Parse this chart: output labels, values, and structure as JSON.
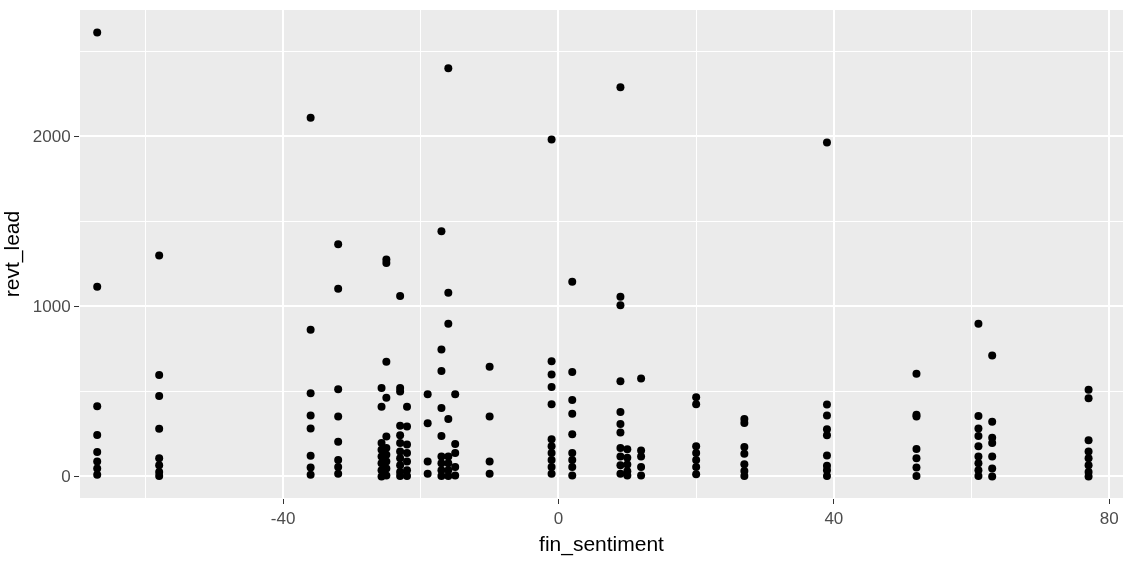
{
  "chart_data": {
    "type": "scatter",
    "xlabel": "fin_sentiment",
    "ylabel": "revt_lead",
    "marker": "circle",
    "grid": true,
    "xlim": [
      -69.5,
      82
    ],
    "ylim": [
      -127,
      2743
    ],
    "xticks": [
      {
        "value": -60,
        "label": null
      },
      -40,
      {
        "value": -20,
        "label": null
      },
      0,
      {
        "value": 20,
        "label": null
      },
      40,
      {
        "value": 60,
        "label": null
      },
      80
    ],
    "yticks": [
      0,
      {
        "value": 500,
        "label": null
      },
      1000,
      {
        "value": 1500,
        "label": null
      },
      2000,
      {
        "value": 2500,
        "label": null
      }
    ],
    "series": [
      {
        "color": "#000000",
        "x": [
          -67,
          -67,
          -67,
          -67,
          -67,
          -67,
          -67,
          -67,
          -58,
          -58,
          -58,
          -58,
          -58,
          -58,
          -58,
          -58,
          -36,
          -36,
          -36,
          -36,
          -36,
          -36,
          -36,
          -36,
          -32,
          -32,
          -32,
          -32,
          -32,
          -32,
          -32,
          -32,
          -25.7,
          -25.7,
          -25.7,
          -25.7,
          -25.7,
          -25.7,
          -25.7,
          -25.7,
          -25,
          -25,
          -25,
          -25,
          -25,
          -25,
          -25,
          -25,
          -25,
          -25,
          -23,
          -23,
          -23,
          -23,
          -23,
          -23,
          -23,
          -23,
          -23,
          -23,
          -23,
          -22,
          -22,
          -22,
          -22,
          -22,
          -22,
          -22,
          -19,
          -19,
          -19,
          -19,
          -17,
          -17,
          -17,
          -17,
          -17,
          -17,
          -17,
          -17,
          -17,
          -16,
          -16,
          -16,
          -16,
          -16,
          -16,
          -16,
          -16,
          -15,
          -15,
          -15,
          -15,
          -15,
          -10,
          -10,
          -10,
          -10,
          -1,
          -1,
          -1,
          -1,
          -1,
          -1,
          -1,
          -1,
          -1,
          -1,
          -1,
          2,
          2,
          2,
          2,
          2,
          2,
          2,
          2,
          2,
          9,
          9,
          9,
          9,
          9,
          9,
          9,
          9,
          9,
          9,
          9,
          10,
          10,
          10,
          10,
          10,
          12,
          12,
          12,
          12,
          12,
          20,
          20,
          20,
          20,
          20,
          20,
          20,
          27,
          27,
          27,
          27,
          27,
          27,
          27,
          39,
          39,
          39,
          39,
          39,
          39,
          39,
          39,
          39,
          52,
          52,
          52,
          52,
          52,
          52,
          52,
          61,
          61,
          61,
          61,
          61,
          61,
          61,
          61,
          61,
          63,
          63,
          63,
          63,
          63,
          63,
          63,
          77,
          77,
          77,
          77,
          77,
          77,
          77,
          77
        ],
        "values": [
          2610,
          1115,
          413,
          244,
          143,
          87,
          46,
          10,
          1299,
          596,
          473,
          280,
          107,
          66,
          26,
          3,
          2109,
          862,
          489,
          358,
          282,
          121,
          53,
          10,
          1366,
          1104,
          512,
          352,
          204,
          97,
          56,
          16,
          520,
          409,
          197,
          157,
          117,
          77,
          36,
          0,
          1275,
          1255,
          675,
          463,
          234,
          167,
          127,
          87,
          46,
          6,
          1061,
          520,
          500,
          298,
          242,
          197,
          147,
          107,
          66,
          26,
          3,
          409,
          294,
          187,
          137,
          87,
          36,
          3,
          483,
          312,
          87,
          16,
          1442,
          747,
          620,
          403,
          238,
          117,
          77,
          36,
          3,
          2400,
          1080,
          898,
          338,
          117,
          77,
          36,
          3,
          483,
          191,
          137,
          56,
          6,
          645,
          352,
          87,
          16,
          1982,
          677,
          600,
          526,
          425,
          218,
          177,
          137,
          97,
          56,
          16,
          1145,
          614,
          449,
          369,
          248,
          137,
          97,
          56,
          6,
          2289,
          1057,
          1006,
          560,
          379,
          308,
          258,
          167,
          117,
          66,
          16,
          160,
          110,
          70,
          30,
          5,
          576,
          153,
          117,
          56,
          6,
          465,
          425,
          177,
          137,
          97,
          56,
          12,
          338,
          314,
          173,
          133,
          72,
          32,
          2,
          1964,
          423,
          358,
          278,
          242,
          123,
          62,
          36,
          3,
          604,
          362,
          352,
          161,
          107,
          53,
          3,
          898,
          355,
          282,
          238,
          177,
          117,
          77,
          36,
          3,
          711,
          322,
          228,
          197,
          117,
          46,
          0,
          510,
          459,
          213,
          147,
          107,
          66,
          26,
          0
        ]
      }
    ]
  }
}
